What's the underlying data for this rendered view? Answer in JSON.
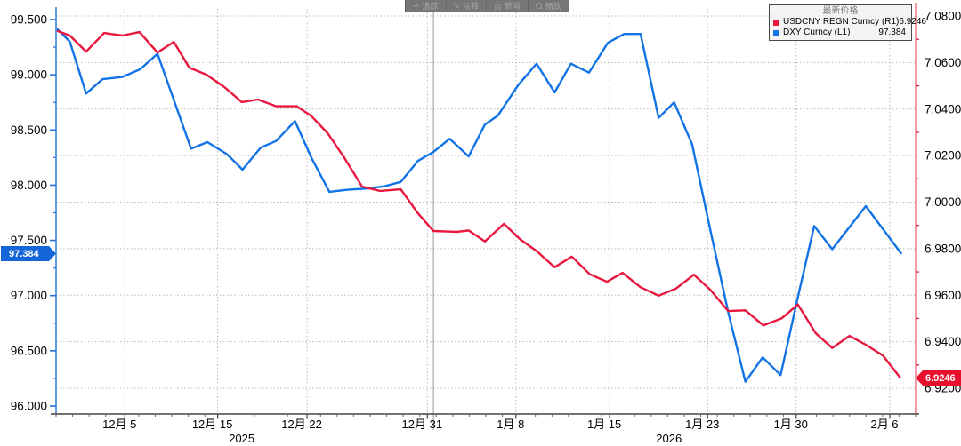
{
  "toolbar": {
    "items": [
      {
        "icon": "move-icon",
        "label": "追踪"
      },
      {
        "icon": "pencil-icon",
        "label": "注释"
      },
      {
        "icon": "news-icon",
        "label": "新闻"
      },
      {
        "icon": "magnifier-icon",
        "label": "缩放"
      }
    ]
  },
  "legend": {
    "title": "最新价格",
    "series": [
      {
        "label": "USDCNY REGN Curncy (R1)",
        "value": "6.9246",
        "color": "#e8173f"
      },
      {
        "label": "DXY Curncy (L1)",
        "value": "97.384",
        "color": "#1273e6"
      }
    ]
  },
  "axes": {
    "left": {
      "current": "97.384",
      "badge_color": "#1466d8",
      "axis_color": "#3b82e0"
    },
    "right": {
      "current": "6.9246",
      "badge_color": "#e8112d",
      "axis_color": "#f2808f"
    }
  },
  "chart_data": {
    "type": "line",
    "title": "",
    "grid": true,
    "legend_position": "top-right",
    "left_axis": {
      "label": "DXY (L1)",
      "ticks": [
        99.5,
        99.0,
        98.5,
        98.0,
        97.5,
        97.0,
        96.5,
        96.0
      ],
      "ylim": [
        96.0,
        99.5
      ],
      "decimals": 3
    },
    "right_axis": {
      "label": "USDCNY (R1)",
      "ticks": [
        7.08,
        7.06,
        7.04,
        7.02,
        7.0,
        6.98,
        6.96,
        6.94,
        6.92
      ],
      "ylim": [
        6.92,
        7.08
      ],
      "decimals": 4
    },
    "x_axis": {
      "tick_labels": [
        "12月 5",
        "12月 15",
        "12月 22",
        "12月 31",
        "1月 8",
        "1月 15",
        "1月 23",
        "1月 30",
        "2月 6"
      ],
      "tick_positions": [
        0.08,
        0.188,
        0.292,
        0.432,
        0.535,
        0.644,
        0.758,
        0.861,
        0.97
      ],
      "years": [
        {
          "label": "2025",
          "position": 0.216
        },
        {
          "label": "2026",
          "position": 0.713
        }
      ],
      "year_separator_position": 0.439,
      "range": "2025-12-01 to 2026-02-09 (daily)"
    },
    "series": [
      {
        "name": "DXY Curncy (L1)",
        "slug": "dxy-line",
        "axis": "left",
        "color": "#1273e6",
        "latest": 97.384,
        "points": [
          [
            0.002,
            99.41
          ],
          [
            0.016,
            99.3
          ],
          [
            0.035,
            98.83
          ],
          [
            0.054,
            98.96
          ],
          [
            0.077,
            98.98
          ],
          [
            0.098,
            99.05
          ],
          [
            0.118,
            99.19
          ],
          [
            0.157,
            98.33
          ],
          [
            0.176,
            98.39
          ],
          [
            0.199,
            98.28
          ],
          [
            0.217,
            98.14
          ],
          [
            0.238,
            98.34
          ],
          [
            0.256,
            98.4
          ],
          [
            0.278,
            98.58
          ],
          [
            0.297,
            98.25
          ],
          [
            0.318,
            97.94
          ],
          [
            0.341,
            97.96
          ],
          [
            0.362,
            97.97
          ],
          [
            0.382,
            97.99
          ],
          [
            0.401,
            98.03
          ],
          [
            0.421,
            98.22
          ],
          [
            0.439,
            98.3
          ],
          [
            0.458,
            98.42
          ],
          [
            0.48,
            98.26
          ],
          [
            0.499,
            98.55
          ],
          [
            0.514,
            98.63
          ],
          [
            0.538,
            98.91
          ],
          [
            0.559,
            99.1
          ],
          [
            0.58,
            98.84
          ],
          [
            0.599,
            99.1
          ],
          [
            0.62,
            99.02
          ],
          [
            0.642,
            99.29
          ],
          [
            0.661,
            99.37
          ],
          [
            0.68,
            99.37
          ],
          [
            0.701,
            98.61
          ],
          [
            0.719,
            98.75
          ],
          [
            0.74,
            98.37
          ],
          [
            0.761,
            97.6
          ],
          [
            0.782,
            96.85
          ],
          [
            0.802,
            96.22
          ],
          [
            0.822,
            96.44
          ],
          [
            0.843,
            96.28
          ],
          [
            0.862,
            96.95
          ],
          [
            0.882,
            97.63
          ],
          [
            0.903,
            97.42
          ],
          [
            0.942,
            97.81
          ],
          [
            0.983,
            97.384
          ]
        ]
      },
      {
        "name": "USDCNY REGN Curncy (R1)",
        "slug": "usdcny-line",
        "axis": "right",
        "color": "#e8173f",
        "latest": 6.9246,
        "points": [
          [
            0.002,
            7.0735
          ],
          [
            0.016,
            7.0716
          ],
          [
            0.035,
            7.0647
          ],
          [
            0.056,
            7.0727
          ],
          [
            0.077,
            7.0716
          ],
          [
            0.097,
            7.0731
          ],
          [
            0.118,
            7.0643
          ],
          [
            0.137,
            7.0689
          ],
          [
            0.155,
            7.0578
          ],
          [
            0.175,
            7.0548
          ],
          [
            0.196,
            7.0494
          ],
          [
            0.216,
            7.043
          ],
          [
            0.235,
            7.0441
          ],
          [
            0.256,
            7.0412
          ],
          [
            0.28,
            7.0412
          ],
          [
            0.297,
            7.037
          ],
          [
            0.316,
            7.0296
          ],
          [
            0.335,
            7.0193
          ],
          [
            0.356,
            7.0067
          ],
          [
            0.377,
            7.0048
          ],
          [
            0.401,
            7.0055
          ],
          [
            0.421,
            6.9952
          ],
          [
            0.439,
            6.9876
          ],
          [
            0.466,
            6.9872
          ],
          [
            0.48,
            6.9878
          ],
          [
            0.499,
            6.9831
          ],
          [
            0.521,
            6.9907
          ],
          [
            0.54,
            6.984
          ],
          [
            0.559,
            6.979
          ],
          [
            0.58,
            6.972
          ],
          [
            0.6,
            6.9766
          ],
          [
            0.621,
            6.969
          ],
          [
            0.641,
            6.9658
          ],
          [
            0.659,
            6.9696
          ],
          [
            0.68,
            6.9634
          ],
          [
            0.701,
            6.9598
          ],
          [
            0.721,
            6.9628
          ],
          [
            0.742,
            6.9688
          ],
          [
            0.761,
            6.9624
          ],
          [
            0.782,
            6.9532
          ],
          [
            0.802,
            6.9535
          ],
          [
            0.823,
            6.947
          ],
          [
            0.844,
            6.95
          ],
          [
            0.863,
            6.956
          ],
          [
            0.884,
            6.9436
          ],
          [
            0.903,
            6.9373
          ],
          [
            0.923,
            6.9425
          ],
          [
            0.942,
            6.9387
          ],
          [
            0.962,
            6.934
          ],
          [
            0.982,
            6.9246
          ]
        ]
      }
    ]
  }
}
